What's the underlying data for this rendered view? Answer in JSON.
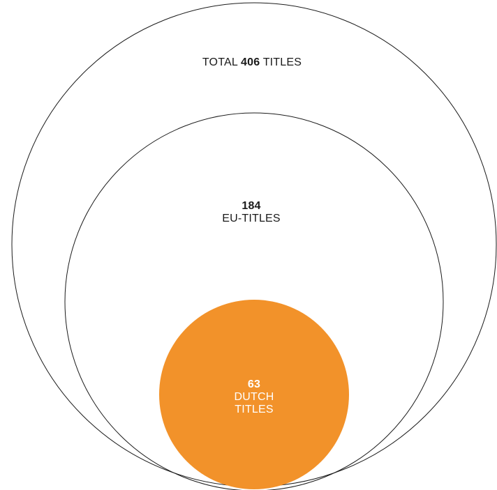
{
  "colors": {
    "outline": "#1a1a1a",
    "accent": "#f2922a",
    "accent_text": "#ffffff",
    "text": "#1a1a1a"
  },
  "total": {
    "prefix": "TOTAL",
    "value": "406",
    "suffix": "TITLES"
  },
  "eu": {
    "value": "184",
    "label": "EU-TITLES"
  },
  "dutch": {
    "value": "63",
    "label_line1": "DUTCH",
    "label_line2": "TITLES"
  },
  "chart_data": {
    "type": "nested-bubble",
    "series": [
      {
        "name": "TOTAL TITLES",
        "value": 406
      },
      {
        "name": "EU-TITLES",
        "value": 184
      },
      {
        "name": "DUTCH TITLES",
        "value": 63
      }
    ]
  }
}
